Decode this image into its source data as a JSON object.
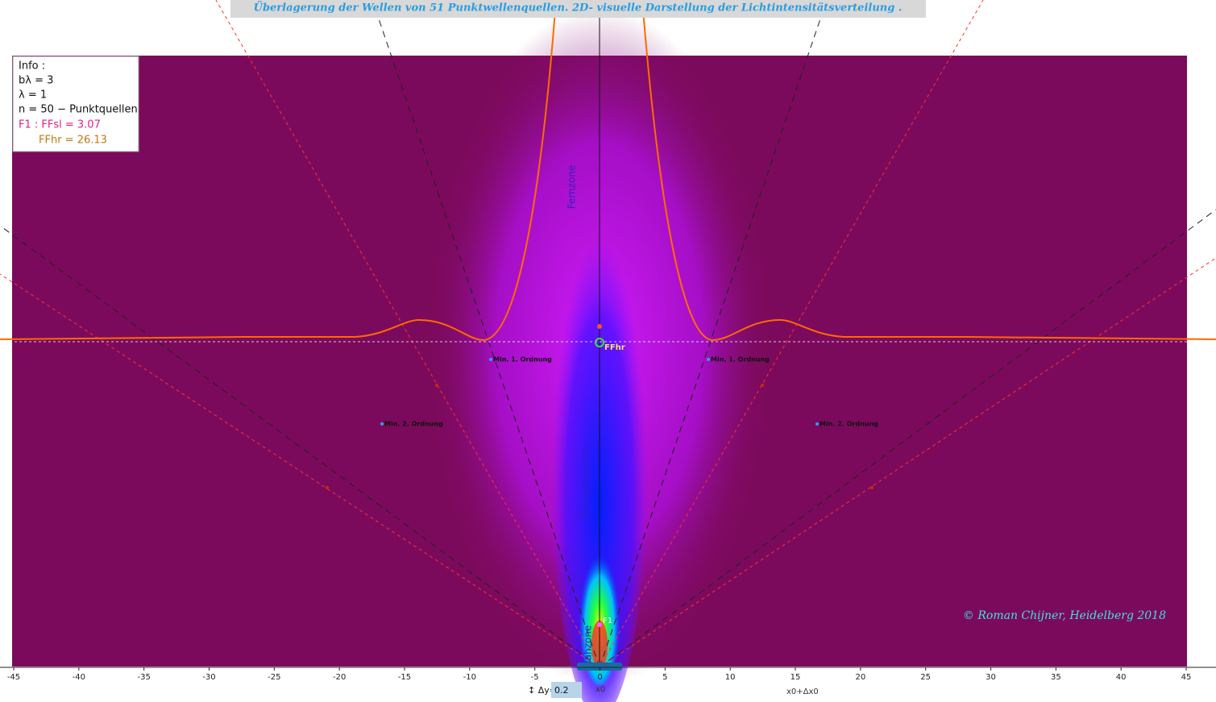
{
  "header": {
    "title": "Überlagerung der Wellen von 51 Punktwellenquellen. 2D-  visuelle Darstellung der Lichtintensitätsverteilung ."
  },
  "info": {
    "lines": [
      "Info :",
      "bλ = 3",
      "λ = 1",
      "n = 50 − Punktquellen",
      "F1 : FFsl = 3.07",
      "FFhr = 26.13"
    ]
  },
  "zones": {
    "far": "Fernzone",
    "transition": "Übergangszone",
    "near": "Nahzone"
  },
  "markers": {
    "min1_left": "Min. 1. Ordnung",
    "min1_right": "Min. 1. Ordnung",
    "min2_left": "Min. 2. Ordnung",
    "min2_right": "Min. 2. Ordnung",
    "f1": "F1",
    "ffhr": "FFhr"
  },
  "copyright": "© Roman Chijner, Heidelberg 2018",
  "controls": {
    "dy_label": "↕ Δy=",
    "dy_value": "0.2",
    "x0": "x0",
    "x0dx": "x0+Δx0"
  },
  "axis": {
    "xlim": [
      -45,
      45
    ],
    "xticks": [
      -45,
      -40,
      -35,
      -30,
      -25,
      -20,
      -15,
      -10,
      -5,
      0,
      5,
      10,
      15,
      20,
      25,
      30,
      35,
      40,
      45
    ]
  }
}
